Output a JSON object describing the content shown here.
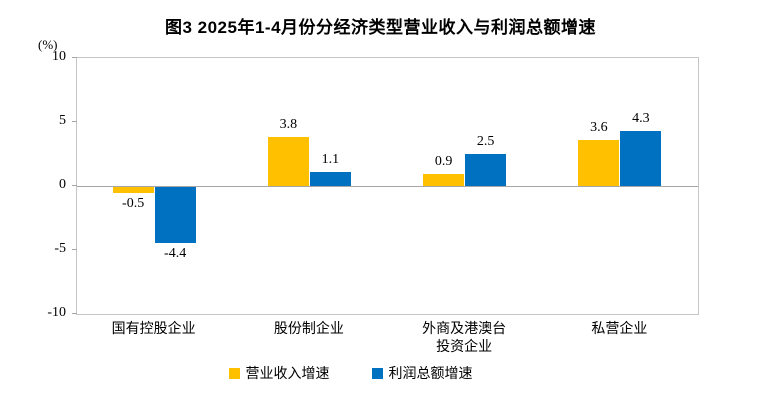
{
  "chart_data": {
    "type": "bar",
    "title": "图3 2025年1-4月份分经济类型营业收入与利润总额增速",
    "unit_label": "(%)",
    "categories": [
      "国有控股企业",
      "股份制企业",
      "外商及港澳台\n投资企业",
      "私营企业"
    ],
    "series": [
      {
        "name": "营业收入增速",
        "color": "#FFC000",
        "values": [
          -0.5,
          3.8,
          0.9,
          3.6
        ]
      },
      {
        "name": "利润总额增速",
        "color": "#0070C0",
        "values": [
          -4.4,
          1.1,
          2.5,
          4.3
        ]
      }
    ],
    "ylim": [
      -10,
      10
    ],
    "yticks": [
      10,
      5,
      0,
      -5,
      -10
    ],
    "value_labels": [
      "-0.5",
      "3.8",
      "0.9",
      "3.6",
      "-4.4",
      "1.1",
      "2.5",
      "4.3"
    ],
    "grid": false,
    "legend_position": "bottom",
    "colors": {
      "plot_border": "#C6C6C6",
      "zero_line": "#A6A6A6",
      "text": "#000000"
    }
  }
}
